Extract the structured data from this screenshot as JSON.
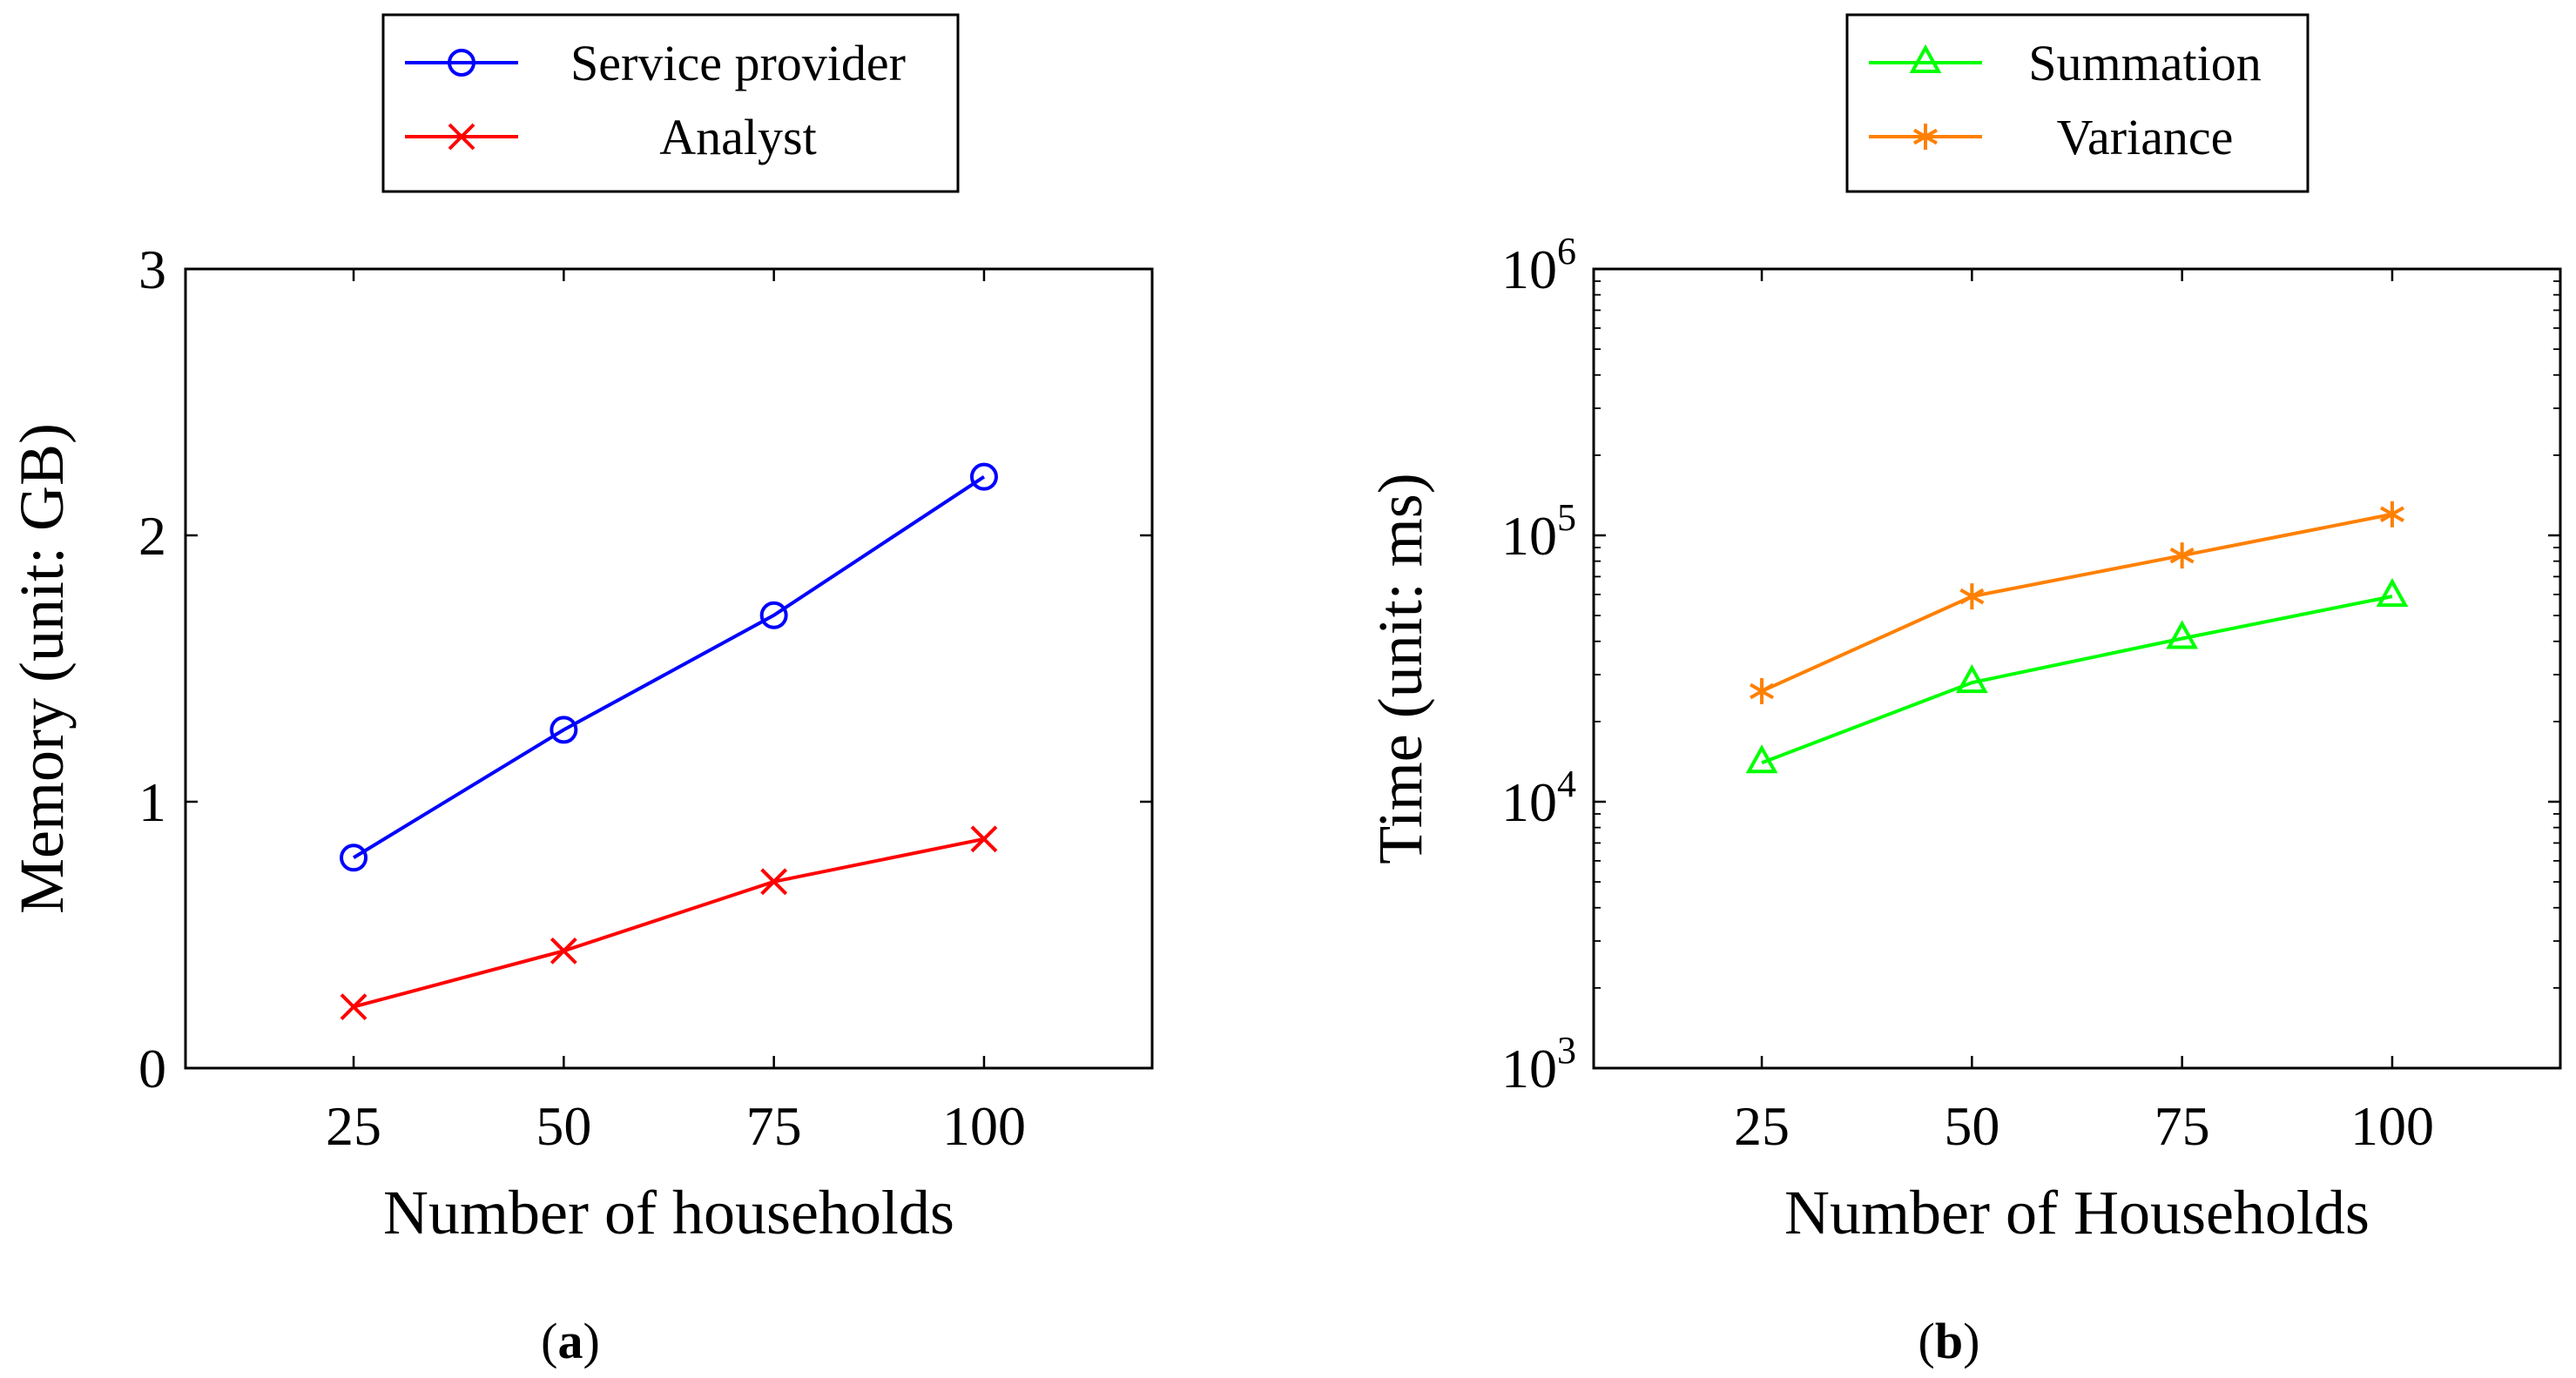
{
  "chart_data": [
    {
      "type": "line",
      "panel": "a",
      "caption_letter": "a",
      "caption_open": "(",
      "caption_close": ")",
      "title": "",
      "xlabel": "Number of households",
      "ylabel": "Memory (unit: GB)",
      "xlim": [
        5,
        120
      ],
      "ylim": [
        0,
        3
      ],
      "yscale": "linear",
      "x": [
        25,
        50,
        75,
        100
      ],
      "xticks": [
        25,
        50,
        75,
        100
      ],
      "yticks": [
        0,
        1,
        2,
        3
      ],
      "xtick_labels": [
        "25",
        "50",
        "75",
        "100"
      ],
      "ytick_labels": [
        "0",
        "1",
        "2",
        "3"
      ],
      "legend_position": "top-center-outside",
      "series": [
        {
          "name": "Service provider",
          "color": "#0000ff",
          "marker": "circle",
          "values": [
            0.79,
            1.27,
            1.7,
            2.22
          ]
        },
        {
          "name": "Analyst",
          "color": "#ff0000",
          "marker": "x",
          "values": [
            0.23,
            0.44,
            0.7,
            0.86
          ]
        }
      ]
    },
    {
      "type": "line",
      "panel": "b",
      "caption_letter": "b",
      "caption_open": "(",
      "caption_close": ")",
      "title": "",
      "xlabel": "Number of Households",
      "ylabel": "Time (unit: ms)",
      "xlim": [
        5,
        120
      ],
      "ylim": [
        1000,
        1000000
      ],
      "yscale": "log",
      "x": [
        25,
        50,
        75,
        100
      ],
      "xticks": [
        25,
        50,
        75,
        100
      ],
      "yticks": [
        1000,
        10000,
        100000,
        1000000
      ],
      "xtick_labels": [
        "25",
        "50",
        "75",
        "100"
      ],
      "ytick_base": "10",
      "ytick_exponents": [
        "3",
        "4",
        "5",
        "6"
      ],
      "legend_position": "top-center-outside",
      "series": [
        {
          "name": "Summation",
          "color": "#00ff00",
          "marker": "triangle",
          "values": [
            14000,
            28000,
            41000,
            59000
          ]
        },
        {
          "name": "Variance",
          "color": "#ff8000",
          "marker": "star",
          "values": [
            26000,
            59000,
            84000,
            120000
          ]
        }
      ]
    }
  ]
}
